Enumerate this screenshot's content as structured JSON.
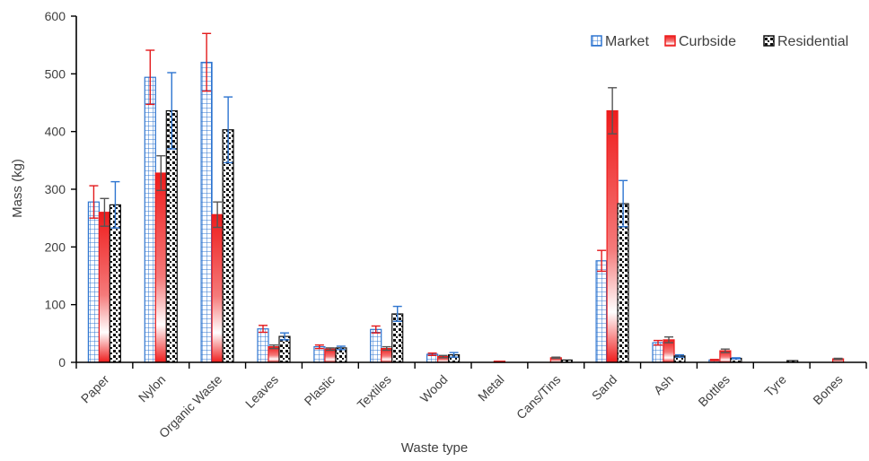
{
  "chart_data": {
    "type": "bar",
    "xlabel": "Waste type",
    "ylabel": "Mass (kg)",
    "ylim": [
      0,
      600
    ],
    "yticks": [
      0,
      100,
      200,
      300,
      400,
      500,
      600
    ],
    "grid": false,
    "legend_position": "top-right",
    "categories": [
      "Paper",
      "Nylon",
      "Organic Waste",
      "Leaves",
      "Plastic",
      "Textiles",
      "Wood",
      "Metal",
      "Cans/Tins",
      "Sand",
      "Ash",
      "Bottles",
      "Tyre",
      "Bones"
    ],
    "series": [
      {
        "name": "Market",
        "color": "#2e75d0",
        "pattern": "grid",
        "values": [
          278,
          494,
          520,
          58,
          27,
          57,
          14,
          0,
          0,
          176,
          34,
          4,
          0,
          0
        ],
        "errors": [
          28,
          47,
          50,
          6,
          3,
          6,
          2,
          0,
          0,
          18,
          4,
          1,
          0,
          0
        ]
      },
      {
        "name": "Curbside",
        "color": "#ee1c1c",
        "pattern": "gradient",
        "values": [
          260,
          328,
          256,
          27,
          23,
          24,
          10,
          2,
          8,
          436,
          39,
          20,
          0,
          6
        ],
        "errors": [
          24,
          30,
          22,
          3,
          2,
          3,
          2,
          0,
          1,
          40,
          5,
          3,
          0,
          1
        ]
      },
      {
        "name": "Residential",
        "color": "#111111",
        "pattern": "dots",
        "values": [
          273,
          436,
          403,
          45,
          25,
          84,
          13,
          0,
          4,
          275,
          11,
          7,
          3,
          0
        ],
        "errors": [
          40,
          66,
          57,
          6,
          3,
          13,
          4,
          0,
          0,
          40,
          2,
          1,
          0,
          0
        ]
      }
    ]
  }
}
